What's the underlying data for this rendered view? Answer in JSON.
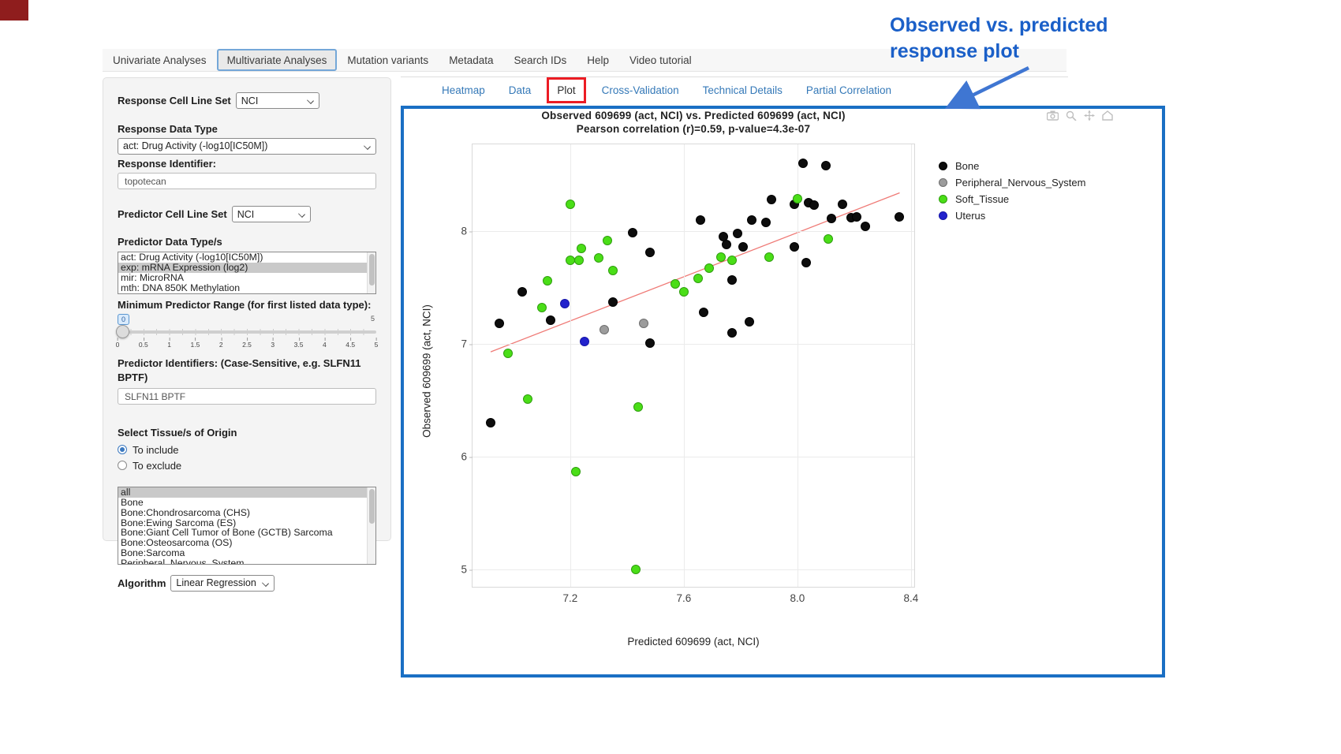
{
  "nav": {
    "items": [
      {
        "label": "Univariate Analyses",
        "active": false
      },
      {
        "label": "Multivariate Analyses",
        "active": true
      },
      {
        "label": "Mutation variants",
        "active": false
      },
      {
        "label": "Metadata",
        "active": false
      },
      {
        "label": "Search IDs",
        "active": false
      },
      {
        "label": "Help",
        "active": false
      },
      {
        "label": "Video tutorial",
        "active": false
      }
    ]
  },
  "sidebar": {
    "response_cell_line_set": {
      "label": "Response Cell Line Set",
      "value": "NCI"
    },
    "response_data_type": {
      "label": "Response Data Type",
      "value": "act: Drug Activity (-log10[IC50M])"
    },
    "response_identifier": {
      "label": "Response Identifier:",
      "value": "topotecan"
    },
    "predictor_cell_line_set": {
      "label": "Predictor Cell Line Set",
      "value": "NCI"
    },
    "predictor_data_types": {
      "label": "Predictor Data Type/s",
      "options": [
        {
          "label": "act: Drug Activity (-log10[IC50M])",
          "selected": false
        },
        {
          "label": "exp: mRNA Expression (log2)",
          "selected": true
        },
        {
          "label": "mir: MicroRNA",
          "selected": false
        },
        {
          "label": "mth: DNA 850K Methylation",
          "selected": false
        }
      ]
    },
    "min_predictor_range": {
      "label": "Minimum Predictor Range (for first listed data type):",
      "value": "0",
      "max_label": "5",
      "ticks": [
        "0",
        "0.5",
        "1",
        "1.5",
        "2",
        "2.5",
        "3",
        "3.5",
        "4",
        "4.5",
        "5"
      ]
    },
    "predictor_identifiers": {
      "label": "Predictor Identifiers: (Case-Sensitive, e.g. SLFN11 BPTF)",
      "value": "SLFN11 BPTF"
    },
    "tissue_origin": {
      "label": "Select Tissue/s of Origin",
      "options": [
        {
          "label": "To include",
          "selected": true
        },
        {
          "label": "To exclude",
          "selected": false
        }
      ]
    },
    "tissue_list": {
      "options": [
        {
          "label": "all",
          "selected": true
        },
        {
          "label": "Bone",
          "selected": false
        },
        {
          "label": "Bone:Chondrosarcoma (CHS)",
          "selected": false
        },
        {
          "label": "Bone:Ewing Sarcoma (ES)",
          "selected": false
        },
        {
          "label": "Bone:Giant Cell Tumor of Bone (GCTB) Sarcoma",
          "selected": false
        },
        {
          "label": "Bone:Osteosarcoma (OS)",
          "selected": false
        },
        {
          "label": "Bone:Sarcoma",
          "selected": false
        },
        {
          "label": "Peripheral_Nervous_System",
          "selected": false
        }
      ]
    },
    "algorithm": {
      "label": "Algorithm",
      "value": "Linear Regression"
    }
  },
  "main": {
    "tabs": [
      {
        "label": "Heatmap",
        "active": false,
        "highlighted": false
      },
      {
        "label": "Data",
        "active": false,
        "highlighted": false
      },
      {
        "label": "Plot",
        "active": true,
        "highlighted": true
      },
      {
        "label": "Cross-Validation",
        "active": false,
        "highlighted": false
      },
      {
        "label": "Technical Details",
        "active": false,
        "highlighted": false
      },
      {
        "label": "Partial Correlation",
        "active": false,
        "highlighted": false
      }
    ]
  },
  "annotation": {
    "heading_line1": "Observed  vs. predicted",
    "heading_line2": "response plot",
    "heading_color": "#1a5fc8",
    "arrow_color": "#3f76d2",
    "highlight_box_color": "#ec1c24"
  },
  "chart_data": {
    "type": "scatter",
    "title": "Observed 609699 (act, NCI) vs. Predicted 609699 (act, NCI)",
    "subtitle": "Pearson correlation (r)=0.59, p-value=4.3e-07",
    "xlabel": "Predicted 609699 (act, NCI)",
    "ylabel": "Observed 609699 (act, NCI)",
    "xlim": [
      6.856,
      8.417
    ],
    "ylim": [
      4.833,
      8.77
    ],
    "xticks": [
      {
        "v": 7.2,
        "label": "7.2"
      },
      {
        "v": 7.6,
        "label": "7.6"
      },
      {
        "v": 8.0,
        "label": "8.0"
      },
      {
        "v": 8.4,
        "label": "8.4"
      }
    ],
    "yticks": [
      {
        "v": 5,
        "label": "5"
      },
      {
        "v": 6,
        "label": "6"
      },
      {
        "v": 7,
        "label": "7"
      },
      {
        "v": 8,
        "label": "8"
      }
    ],
    "grid": true,
    "legend_position": "right",
    "series": [
      {
        "name": "Bone",
        "color": "#0d0d0d",
        "stroke": "#000000",
        "points": [
          [
            8.02,
            8.6
          ],
          [
            8.1,
            8.58
          ],
          [
            7.91,
            8.28
          ],
          [
            7.99,
            8.24
          ],
          [
            8.04,
            8.25
          ],
          [
            8.06,
            8.23
          ],
          [
            8.16,
            8.24
          ],
          [
            7.66,
            8.1
          ],
          [
            7.84,
            8.1
          ],
          [
            7.89,
            8.08
          ],
          [
            8.12,
            8.11
          ],
          [
            8.19,
            8.12
          ],
          [
            8.21,
            8.13
          ],
          [
            8.24,
            8.04
          ],
          [
            8.36,
            8.13
          ],
          [
            7.42,
            7.99
          ],
          [
            7.74,
            7.95
          ],
          [
            7.75,
            7.88
          ],
          [
            7.79,
            7.98
          ],
          [
            7.81,
            7.86
          ],
          [
            7.99,
            7.86
          ],
          [
            7.48,
            7.81
          ],
          [
            8.03,
            7.72
          ],
          [
            7.77,
            7.57
          ],
          [
            7.03,
            7.46
          ],
          [
            7.35,
            7.37
          ],
          [
            7.13,
            7.21
          ],
          [
            6.95,
            7.18
          ],
          [
            7.67,
            7.28
          ],
          [
            7.83,
            7.2
          ],
          [
            7.77,
            7.1
          ],
          [
            7.48,
            7.01
          ],
          [
            6.92,
            6.3
          ]
        ]
      },
      {
        "name": "Peripheral_Nervous_System",
        "color": "#9c9c9c",
        "stroke": "#6e6e6e",
        "points": [
          [
            7.32,
            7.13
          ],
          [
            7.46,
            7.18
          ]
        ]
      },
      {
        "name": "Soft_Tissue",
        "color": "#4ade17",
        "stroke": "#2f9e0e",
        "points": [
          [
            7.2,
            8.24
          ],
          [
            8.0,
            8.29
          ],
          [
            7.33,
            7.92
          ],
          [
            7.24,
            7.85
          ],
          [
            7.2,
            7.74
          ],
          [
            7.23,
            7.74
          ],
          [
            7.3,
            7.76
          ],
          [
            7.35,
            7.65
          ],
          [
            7.12,
            7.56
          ],
          [
            7.1,
            7.32
          ],
          [
            7.57,
            7.53
          ],
          [
            7.6,
            7.46
          ],
          [
            7.65,
            7.58
          ],
          [
            7.69,
            7.67
          ],
          [
            7.73,
            7.77
          ],
          [
            7.77,
            7.74
          ],
          [
            7.9,
            7.77
          ],
          [
            8.11,
            7.93
          ],
          [
            6.98,
            6.92
          ],
          [
            7.05,
            6.51
          ],
          [
            7.44,
            6.44
          ],
          [
            7.22,
            5.87
          ],
          [
            7.43,
            5.0
          ]
        ]
      },
      {
        "name": "Uterus",
        "color": "#2222cc",
        "stroke": "#1515a8",
        "points": [
          [
            7.18,
            7.36
          ],
          [
            7.25,
            7.02
          ]
        ]
      }
    ],
    "trendline": {
      "color": "#ef7a76",
      "x": [
        6.92,
        8.36
      ],
      "y": [
        6.93,
        8.34
      ]
    }
  }
}
